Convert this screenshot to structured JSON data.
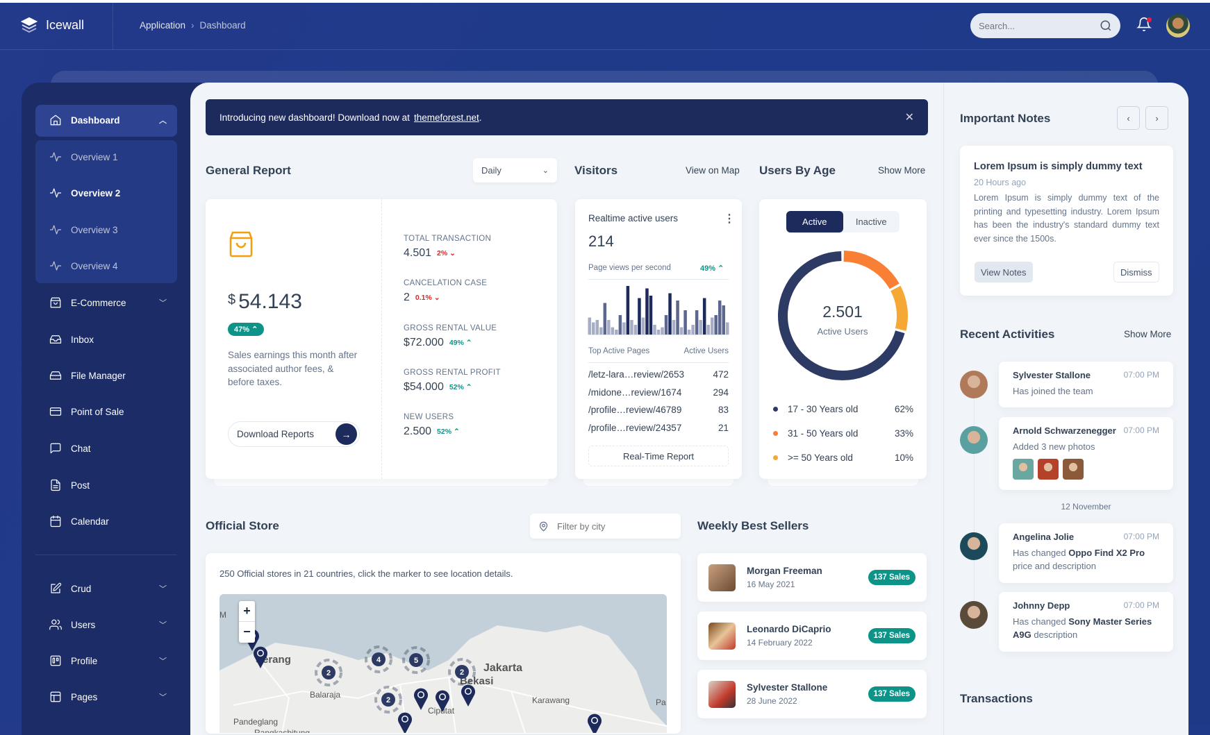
{
  "header": {
    "app_name": "Icewall",
    "breadcrumb": [
      "Application",
      "Dashboard"
    ],
    "search_placeholder": "Search..."
  },
  "sidebar": {
    "items": [
      {
        "label": "Dashboard",
        "icon": "home-icon",
        "expanded": true,
        "active": true
      },
      {
        "label": "Overview 1",
        "icon": "activity-icon",
        "sub": true
      },
      {
        "label": "Overview 2",
        "icon": "activity-icon",
        "sub": true,
        "active": true
      },
      {
        "label": "Overview 3",
        "icon": "activity-icon",
        "sub": true
      },
      {
        "label": "Overview 4",
        "icon": "activity-icon",
        "sub": true
      },
      {
        "label": "E-Commerce",
        "icon": "shopping-bag-icon",
        "chevron": true
      },
      {
        "label": "Inbox",
        "icon": "inbox-icon"
      },
      {
        "label": "File Manager",
        "icon": "hard-drive-icon"
      },
      {
        "label": "Point of Sale",
        "icon": "credit-card-icon"
      },
      {
        "label": "Chat",
        "icon": "message-square-icon"
      },
      {
        "label": "Post",
        "icon": "file-text-icon"
      },
      {
        "label": "Calendar",
        "icon": "calendar-icon"
      },
      {
        "label": "Crud",
        "icon": "edit-icon",
        "chevron": true
      },
      {
        "label": "Users",
        "icon": "users-icon",
        "chevron": true
      },
      {
        "label": "Profile",
        "icon": "trello-icon",
        "chevron": true
      },
      {
        "label": "Pages",
        "icon": "layout-icon",
        "chevron": true
      }
    ]
  },
  "banner": {
    "text": "Introducing new dashboard! Download now at",
    "link": "themeforest.net",
    "suffix": "."
  },
  "general_report": {
    "title": "General Report",
    "period": "Daily",
    "amount_currency": "$",
    "amount": "54.143",
    "badge": "47%",
    "description": "Sales earnings this month after associated author fees, & before taxes.",
    "download_label": "Download Reports",
    "stats": [
      {
        "label": "TOTAL TRANSACTION",
        "value": "4.501",
        "change": "2%",
        "trend": "down"
      },
      {
        "label": "CANCELATION CASE",
        "value": "2",
        "change": "0.1%",
        "trend": "down"
      },
      {
        "label": "GROSS RENTAL VALUE",
        "value": "$72.000",
        "change": "49%",
        "trend": "up"
      },
      {
        "label": "GROSS RENTAL PROFIT",
        "value": "$54.000",
        "change": "52%",
        "trend": "up"
      },
      {
        "label": "NEW USERS",
        "value": "2.500",
        "change": "52%",
        "trend": "up"
      }
    ]
  },
  "visitors": {
    "title": "Visitors",
    "link": "View on Map",
    "card_title": "Realtime active users",
    "count": "214",
    "pv_label": "Page views per second",
    "pv_change": "49%",
    "bars": [
      35,
      25,
      30,
      15,
      65,
      30,
      15,
      10,
      40,
      25,
      100,
      30,
      20,
      75,
      35,
      95,
      80,
      20,
      10,
      15,
      40,
      85,
      30,
      70,
      15,
      50,
      10,
      20,
      50,
      30,
      75,
      20,
      35,
      40,
      70,
      60,
      25
    ],
    "table_headers": [
      "Top Active Pages",
      "Active Users"
    ],
    "pages": [
      {
        "page": "/letz-lara…review/2653",
        "users": "472"
      },
      {
        "page": "/midone…review/1674",
        "users": "294"
      },
      {
        "page": "/profile…review/46789",
        "users": "83"
      },
      {
        "page": "/profile…review/24357",
        "users": "21"
      }
    ],
    "report_button": "Real-Time Report"
  },
  "users_by_age": {
    "title": "Users By Age",
    "link": "Show More",
    "tabs": [
      "Active",
      "Inactive"
    ],
    "active_tab": "Active",
    "total": "2.501",
    "total_label": "Active Users",
    "groups": [
      {
        "label": "17 - 30 Years old",
        "pct": "62%",
        "value": 62,
        "color": "#2d3a63"
      },
      {
        "label": "31 - 50 Years old",
        "pct": "33%",
        "value": 33,
        "color": "#f97f35"
      },
      {
        "label": ">= 50 Years old",
        "pct": "10%",
        "value": 10,
        "color": "#f5a833"
      }
    ]
  },
  "official_store": {
    "title": "Official Store",
    "filter_placeholder": "Filter by city",
    "description": "250 Official stores in 21 countries, click the marker to see location details.",
    "map": {
      "zoom_in": "+",
      "zoom_out": "−",
      "cities": [
        "Serang",
        "Balaraja",
        "Jakarta",
        "Bekasi",
        "Karawang",
        "Pandeglang",
        "Rangkasbitung",
        "Ciputat",
        "M",
        "Pa"
      ],
      "clusters": [
        "2",
        "4",
        "5",
        "2",
        "2"
      ]
    }
  },
  "best_sellers": {
    "title": "Weekly Best Sellers",
    "items": [
      {
        "name": "Morgan Freeman",
        "date": "16 May 2021",
        "sales": "137 Sales"
      },
      {
        "name": "Leonardo DiCaprio",
        "date": "14 February 2022",
        "sales": "137 Sales"
      },
      {
        "name": "Sylvester Stallone",
        "date": "28 June 2022",
        "sales": "137 Sales"
      }
    ]
  },
  "notes": {
    "title": "Important Notes",
    "note_title": "Lorem Ipsum is simply dummy text",
    "note_time": "20 Hours ago",
    "note_body": "Lorem Ipsum is simply dummy text of the printing and typesetting industry. Lorem Ipsum has been the industry's standard dummy text ever since the 1500s.",
    "view_label": "View Notes",
    "dismiss_label": "Dismiss"
  },
  "activities": {
    "title": "Recent Activities",
    "link": "Show More",
    "date_divider": "12 November",
    "items": [
      {
        "name": "Sylvester Stallone",
        "time": "07:00 PM",
        "text": "Has joined the team"
      },
      {
        "name": "Arnold Schwarzenegger",
        "time": "07:00 PM",
        "text": "Added 3 new photos"
      },
      {
        "name": "Angelina Jolie",
        "time": "07:00 PM",
        "text": "Has changed",
        "highlight": "Oppo Find X2 Pro",
        "text2": "price and description"
      },
      {
        "name": "Johnny Depp",
        "time": "07:00 PM",
        "text": "Has changed",
        "highlight": "Sony Master Series A9G",
        "text2": "description"
      }
    ]
  },
  "transactions": {
    "title": "Transactions"
  },
  "colors": {
    "primary": "#1c2a5c",
    "success": "#0d9488",
    "danger": "#dc2626",
    "warning": "#f59e0b",
    "bg": "#f1f5f9"
  }
}
